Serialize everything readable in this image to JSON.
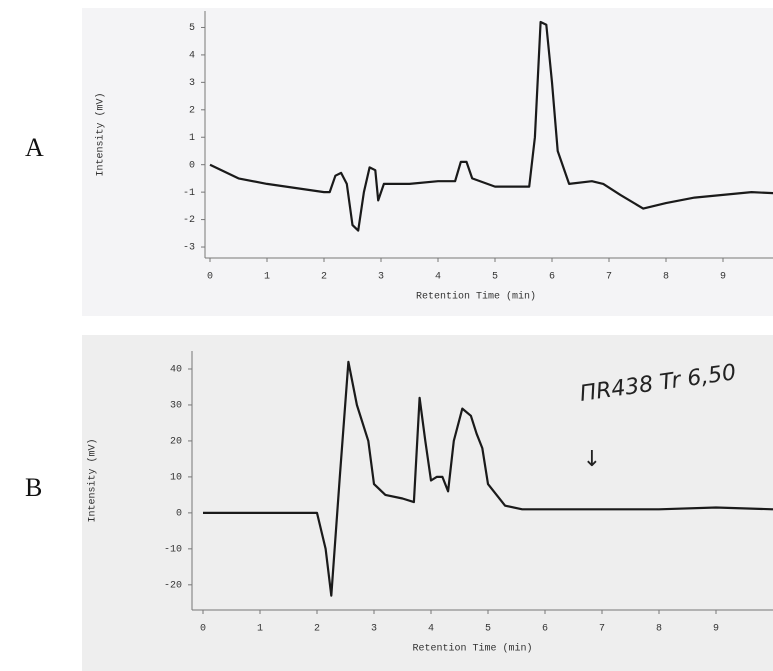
{
  "chart_data": [
    {
      "type": "line",
      "label": "A",
      "ylabel": "Intensity (mV)",
      "xlabel": "Retention Time (min)",
      "xlim": [
        0,
        10
      ],
      "ylim": [
        -3.4,
        5.6
      ],
      "xticks": [
        0,
        1,
        2,
        3,
        4,
        5,
        6,
        7,
        8,
        9
      ],
      "yticks": [
        -3,
        -2,
        -1,
        0,
        1,
        2,
        3,
        4,
        5
      ],
      "color": "#1a1a1a",
      "x": [
        0,
        0.5,
        1,
        1.5,
        2,
        2.1,
        2.2,
        2.3,
        2.4,
        2.5,
        2.6,
        2.7,
        2.8,
        2.9,
        2.95,
        3.05,
        3.5,
        4,
        4.3,
        4.4,
        4.5,
        4.6,
        5,
        5.6,
        5.7,
        5.8,
        5.9,
        6.0,
        6.1,
        6.3,
        6.7,
        6.9,
        7.2,
        7.6,
        8,
        8.5,
        9,
        9.5,
        10
      ],
      "values": [
        0,
        -0.5,
        -0.7,
        -0.85,
        -1,
        -1,
        -0.4,
        -0.3,
        -0.7,
        -2.2,
        -2.4,
        -1,
        -0.1,
        -0.2,
        -1.3,
        -0.7,
        -0.7,
        -0.6,
        -0.6,
        0.1,
        0.1,
        -0.5,
        -0.8,
        -0.8,
        1,
        5.2,
        5.1,
        3,
        0.5,
        -0.7,
        -0.6,
        -0.7,
        -1.1,
        -1.6,
        -1.4,
        -1.2,
        -1.1,
        -1,
        -1.05
      ]
    },
    {
      "type": "line",
      "label": "B",
      "ylabel": "Intensity (mV)",
      "xlabel": "Retention Time (min)",
      "xlim": [
        0,
        10
      ],
      "ylim": [
        -27,
        45
      ],
      "xticks": [
        0,
        1,
        2,
        3,
        4,
        5,
        6,
        7,
        8,
        9
      ],
      "yticks": [
        -20,
        -10,
        0,
        10,
        20,
        30,
        40
      ],
      "color": "#1a1a1a",
      "annotations": [
        "ΠR438 Tr 6,50",
        "↓"
      ],
      "x": [
        0,
        1,
        2,
        2.15,
        2.25,
        2.4,
        2.55,
        2.7,
        2.9,
        3,
        3.2,
        3.5,
        3.7,
        3.8,
        3.9,
        4.0,
        4.1,
        4.2,
        4.3,
        4.4,
        4.55,
        4.7,
        4.8,
        4.9,
        5,
        5.3,
        5.6,
        6,
        7,
        8,
        9,
        10
      ],
      "values": [
        0,
        0,
        0,
        -10,
        -23,
        10,
        42,
        30,
        20,
        8,
        5,
        4,
        3,
        32,
        20,
        9,
        10,
        10,
        6,
        20,
        29,
        27,
        22,
        18,
        8,
        2,
        1,
        1,
        1,
        1,
        1.5,
        1
      ]
    }
  ]
}
